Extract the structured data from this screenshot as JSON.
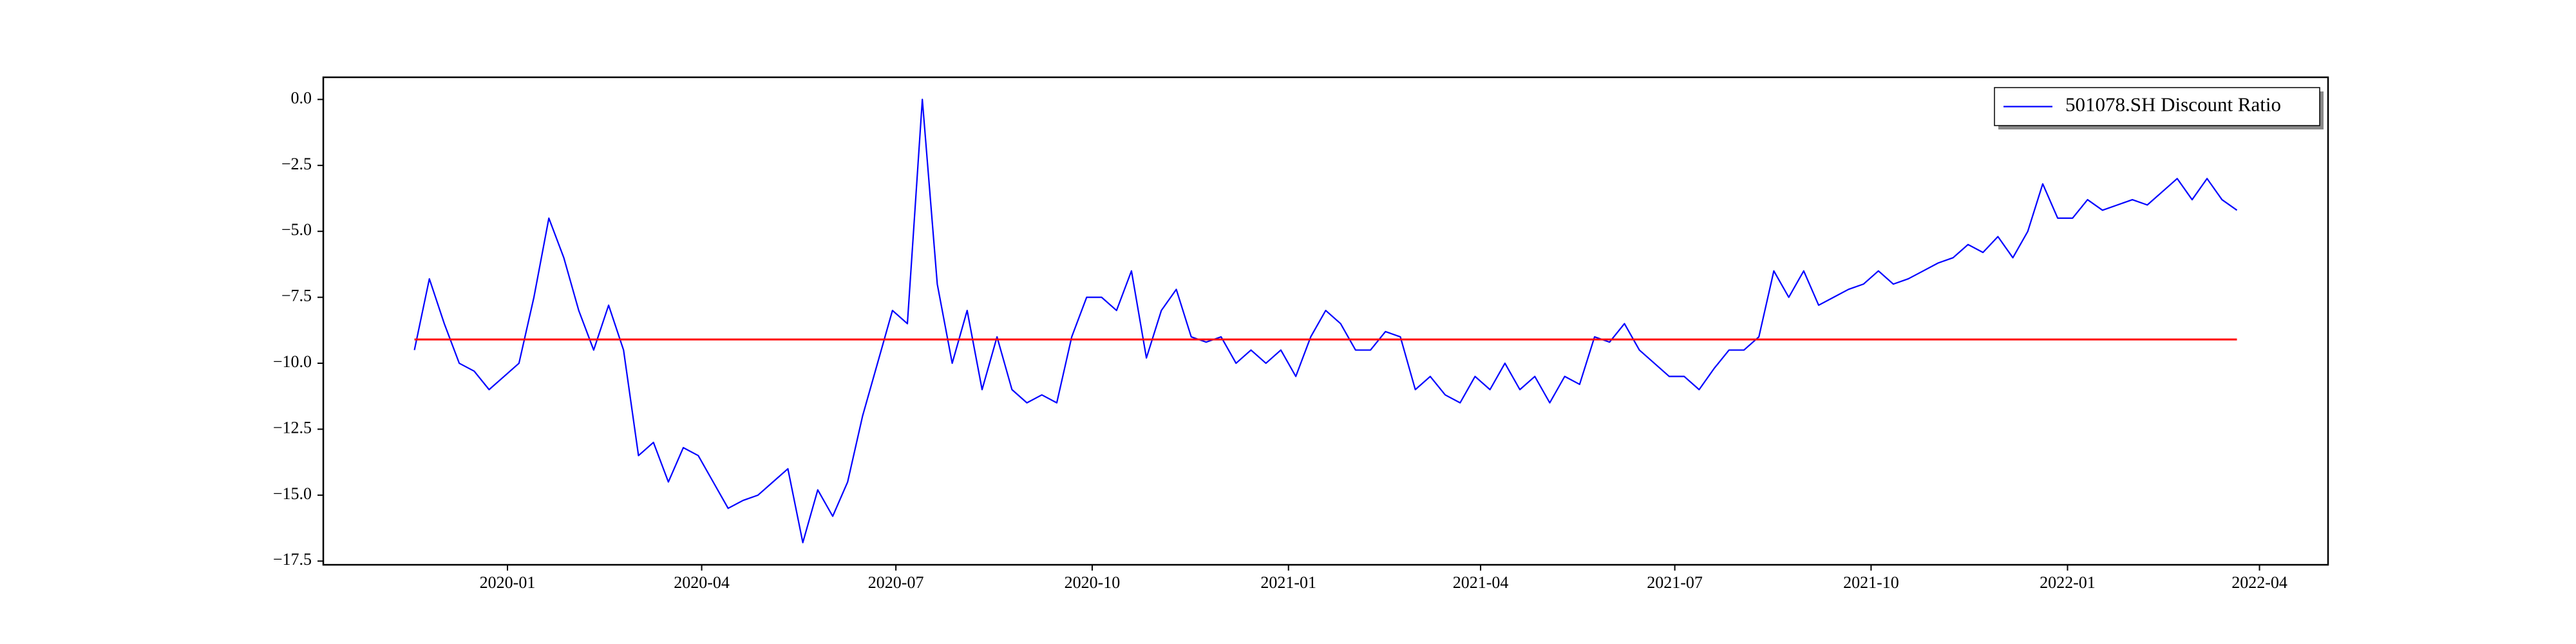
{
  "chart_data": {
    "type": "line",
    "series": [
      {
        "name": "501078.SH Discount Ratio",
        "color": "#0000ff",
        "values": [
          -9.5,
          -6.8,
          -8.5,
          -10.0,
          -10.3,
          -11.0,
          -10.5,
          -10.0,
          -7.5,
          -4.5,
          -6.0,
          -8.0,
          -9.5,
          -7.8,
          -9.5,
          -13.5,
          -13.0,
          -14.5,
          -13.2,
          -13.5,
          -14.5,
          -15.5,
          -15.2,
          -15.0,
          -14.5,
          -14.0,
          -16.8,
          -14.8,
          -15.8,
          -14.5,
          -12.0,
          -10.0,
          -8.0,
          -8.5,
          0.0,
          -7.0,
          -10.0,
          -8.0,
          -11.0,
          -9.0,
          -11.0,
          -11.5,
          -11.2,
          -11.5,
          -9.0,
          -7.5,
          -7.5,
          -8.0,
          -6.5,
          -9.8,
          -8.0,
          -7.2,
          -9.0,
          -9.2,
          -9.0,
          -10.0,
          -9.5,
          -10.0,
          -9.5,
          -10.5,
          -9.0,
          -8.0,
          -8.5,
          -9.5,
          -9.5,
          -8.8,
          -9.0,
          -11.0,
          -10.5,
          -11.2,
          -11.5,
          -10.5,
          -11.0,
          -10.0,
          -11.0,
          -10.5,
          -11.5,
          -10.5,
          -10.8,
          -9.0,
          -9.2,
          -8.5,
          -9.5,
          -10.0,
          -10.5,
          -10.5,
          -11.0,
          -10.2,
          -9.5,
          -9.5,
          -9.0,
          -6.5,
          -7.5,
          -6.5,
          -7.8,
          -7.5,
          -7.2,
          -7.0,
          -6.5,
          -7.0,
          -6.8,
          -6.5,
          -6.2,
          -6.0,
          -5.5,
          -5.8,
          -5.2,
          -6.0,
          -5.0,
          -3.2,
          -4.5,
          -4.5,
          -3.8,
          -4.2,
          -4.0,
          -3.8,
          -4.0,
          -3.5,
          -3.0,
          -3.8,
          -3.0,
          -3.8,
          -4.2
        ]
      }
    ],
    "hline": {
      "value": -9.1,
      "color": "#ff0000"
    },
    "xlim": [
      -6.1,
      128.1
    ],
    "xticks": [
      {
        "value": 6.23,
        "label": "2020-01"
      },
      {
        "value": 19.23,
        "label": "2020-04"
      },
      {
        "value": 32.23,
        "label": "2020-07"
      },
      {
        "value": 45.37,
        "label": "2020-10"
      },
      {
        "value": 58.51,
        "label": "2021-01"
      },
      {
        "value": 71.37,
        "label": "2021-04"
      },
      {
        "value": 84.37,
        "label": "2021-07"
      },
      {
        "value": 97.51,
        "label": "2021-10"
      },
      {
        "value": 110.66,
        "label": "2022-01"
      },
      {
        "value": 123.51,
        "label": "2022-04"
      }
    ],
    "ylim": [
      -17.64,
      0.84
    ],
    "yticks": [
      {
        "value": 0,
        "label": "0.0"
      },
      {
        "value": -2.5,
        "label": "−2.5"
      },
      {
        "value": -5,
        "label": "−5.0"
      },
      {
        "value": -7.5,
        "label": "−7.5"
      },
      {
        "value": -10,
        "label": "−10.0"
      },
      {
        "value": -12.5,
        "label": "−12.5"
      },
      {
        "value": -15,
        "label": "−15.0"
      },
      {
        "value": -17.5,
        "label": "−17.5"
      }
    ],
    "legend": "upper right"
  }
}
